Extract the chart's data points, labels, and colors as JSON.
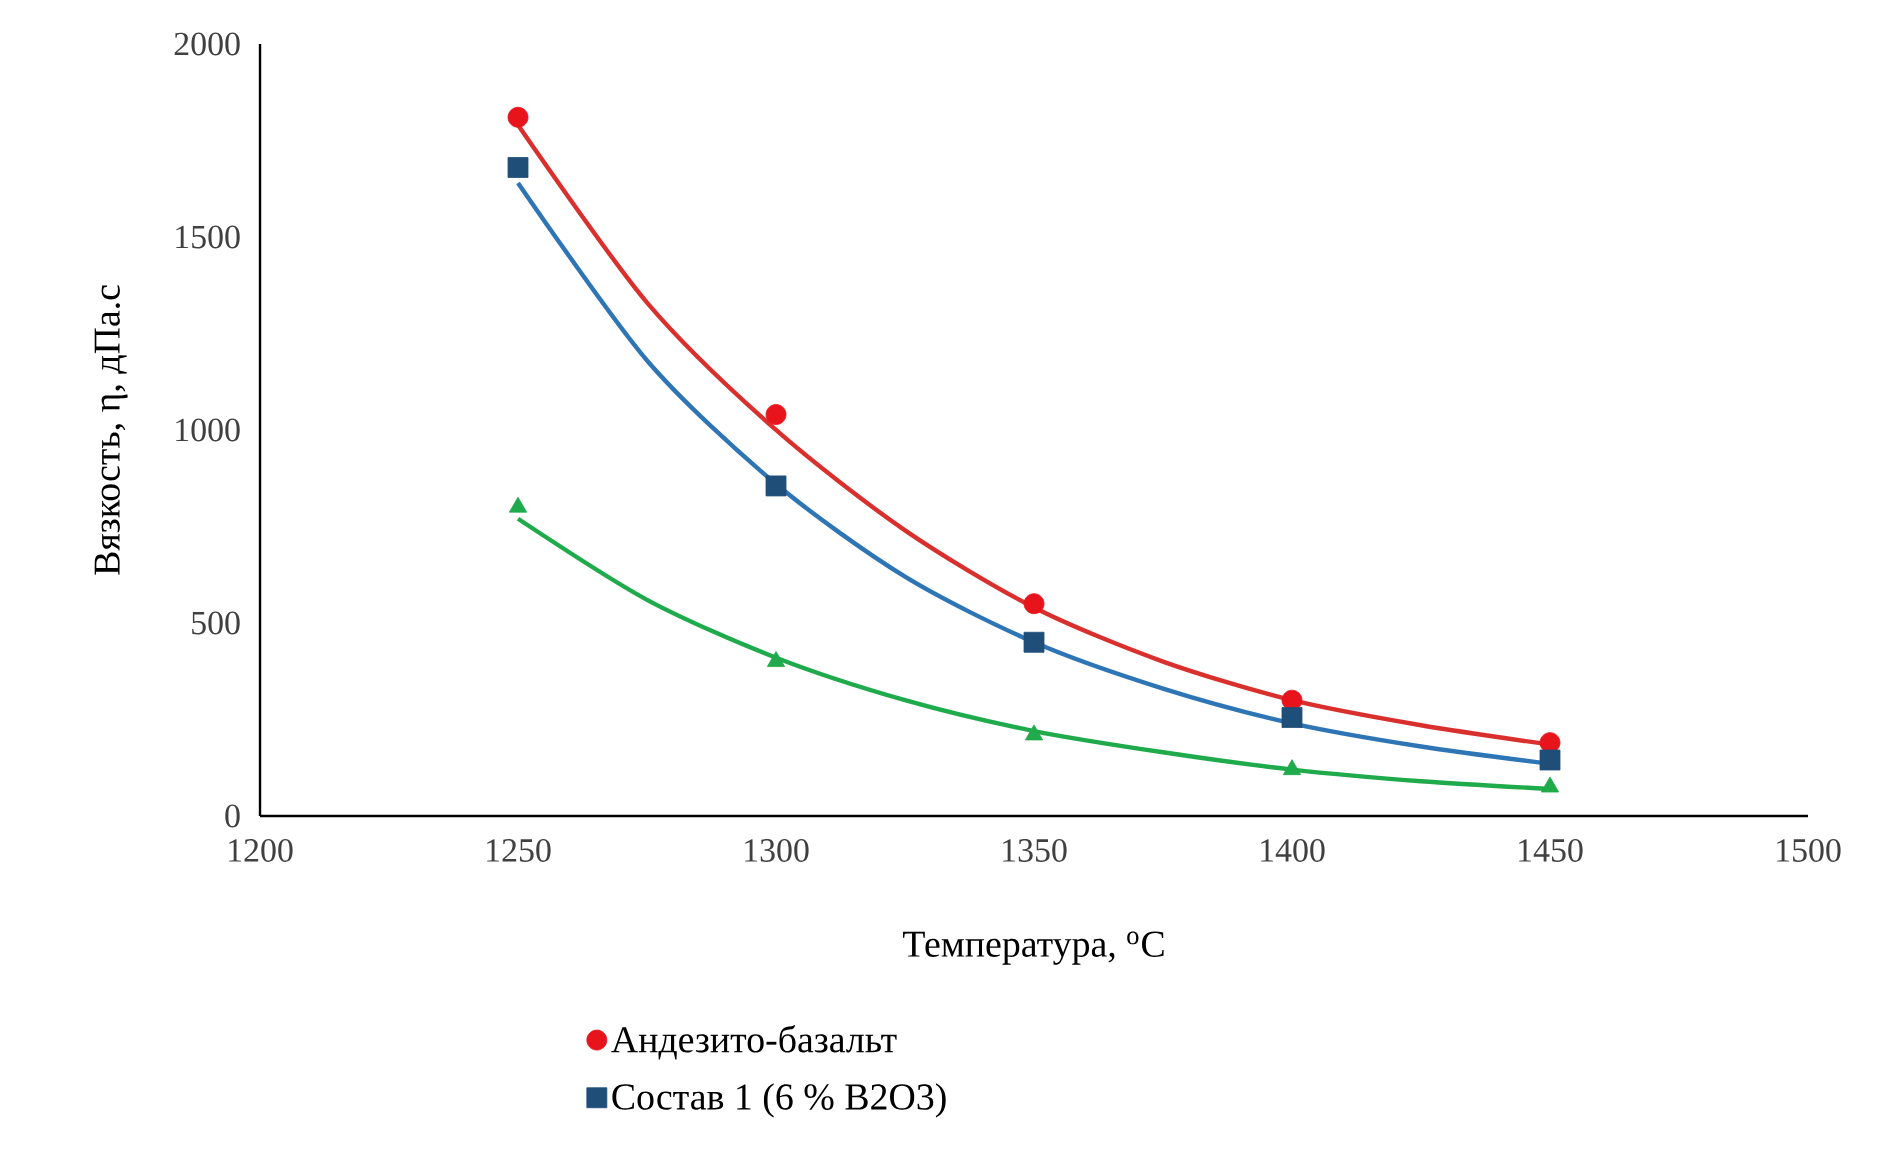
{
  "chart_data": {
    "type": "scatter",
    "xlabel": "Температура, $^{o}$C",
    "ylabel": "Вязкость, η, дПа.с",
    "xlim": [
      1200,
      1500
    ],
    "ylim": [
      0,
      2000
    ],
    "xticks": [
      1200,
      1250,
      1300,
      1350,
      1400,
      1450,
      1500
    ],
    "yticks": [
      0,
      500,
      1000,
      1500,
      2000
    ],
    "legend": "bottom",
    "series": [
      {
        "name": "Андезито-базальт",
        "marker": "circle",
        "color": "#e8141c",
        "x": [
          1250,
          1300,
          1350,
          1400,
          1450
        ],
        "values": [
          1810,
          1040,
          550,
          300,
          190
        ]
      },
      {
        "name": "Состав 1 (6 % B2O3)",
        "marker": "square",
        "color": "#1f4e79",
        "x": [
          1250,
          1300,
          1350,
          1400,
          1450
        ],
        "values": [
          1680,
          855,
          450,
          255,
          145
        ]
      },
      {
        "marker": "triangle",
        "color": "#1faa4b",
        "x": [
          1250,
          1300,
          1350,
          1400,
          1450
        ],
        "values": [
          800,
          400,
          210,
          120,
          75
        ]
      },
      {
        "type": "line",
        "marker": "none",
        "line_style": "solid",
        "color": "#d9302e",
        "x": [
          1250,
          1275,
          1300,
          1325,
          1350,
          1375,
          1400,
          1425,
          1450
        ],
        "values": [
          1790,
          1330,
          1000,
          740,
          540,
          400,
          300,
          235,
          185
        ]
      },
      {
        "type": "line",
        "marker": "none",
        "line_style": "solid",
        "color": "#2e75b6",
        "x": [
          1250,
          1275,
          1300,
          1325,
          1350,
          1375,
          1400,
          1425,
          1450
        ],
        "values": [
          1640,
          1180,
          860,
          620,
          450,
          330,
          240,
          180,
          135
        ]
      },
      {
        "type": "line",
        "marker": "none",
        "line_style": "solid",
        "color": "#1faa4b",
        "x": [
          1250,
          1275,
          1300,
          1325,
          1350,
          1375,
          1400,
          1425,
          1450
        ],
        "values": [
          770,
          560,
          410,
          300,
          220,
          165,
          120,
          90,
          70
        ]
      }
    ]
  }
}
